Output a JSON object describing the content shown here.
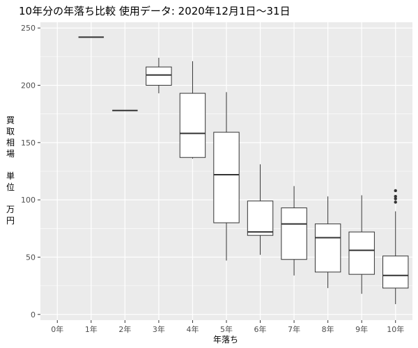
{
  "chart_data": {
    "type": "boxplot",
    "title": "10年分の年落ち比較 使用データ: 2020年12月1日～31日",
    "xlabel": "年落ち",
    "ylabel_chars": [
      "買",
      "取",
      "相",
      "場",
      "",
      "単",
      "位",
      "",
      "万",
      "円"
    ],
    "categories": [
      "0年",
      "1年",
      "2年",
      "3年",
      "4年",
      "5年",
      "6年",
      "7年",
      "8年",
      "9年",
      "10年"
    ],
    "ylim": [
      -5,
      255
    ],
    "yticks": [
      0,
      50,
      100,
      150,
      200,
      250
    ],
    "grid": true,
    "colors": {
      "panel": "#ebebeb",
      "grid_major": "#ffffff",
      "box_fill": "#ffffff",
      "box_line": "#333333"
    },
    "boxes": [
      null,
      {
        "min": 242,
        "q1": 242,
        "median": 242,
        "q3": 242,
        "max": 242,
        "outliers": []
      },
      {
        "min": 178,
        "q1": 178,
        "median": 178,
        "q3": 178,
        "max": 178,
        "outliers": []
      },
      {
        "min": 193,
        "q1": 200,
        "median": 209,
        "q3": 216,
        "max": 224,
        "outliers": []
      },
      {
        "min": 136,
        "q1": 137,
        "median": 158,
        "q3": 193,
        "max": 221,
        "outliers": []
      },
      {
        "min": 47,
        "q1": 80,
        "median": 122,
        "q3": 159,
        "max": 194,
        "outliers": []
      },
      {
        "min": 52,
        "q1": 69,
        "median": 72,
        "q3": 99,
        "max": 131,
        "outliers": []
      },
      {
        "min": 34,
        "q1": 48,
        "median": 79,
        "q3": 93,
        "max": 112,
        "outliers": []
      },
      {
        "min": 23,
        "q1": 37,
        "median": 67,
        "q3": 79,
        "max": 103,
        "outliers": []
      },
      {
        "min": 18,
        "q1": 35,
        "median": 56,
        "q3": 72,
        "max": 104,
        "outliers": []
      },
      {
        "min": 9,
        "q1": 23,
        "median": 34,
        "q3": 51,
        "max": 90,
        "outliers": [
          98,
          101,
          103,
          108
        ]
      }
    ]
  }
}
